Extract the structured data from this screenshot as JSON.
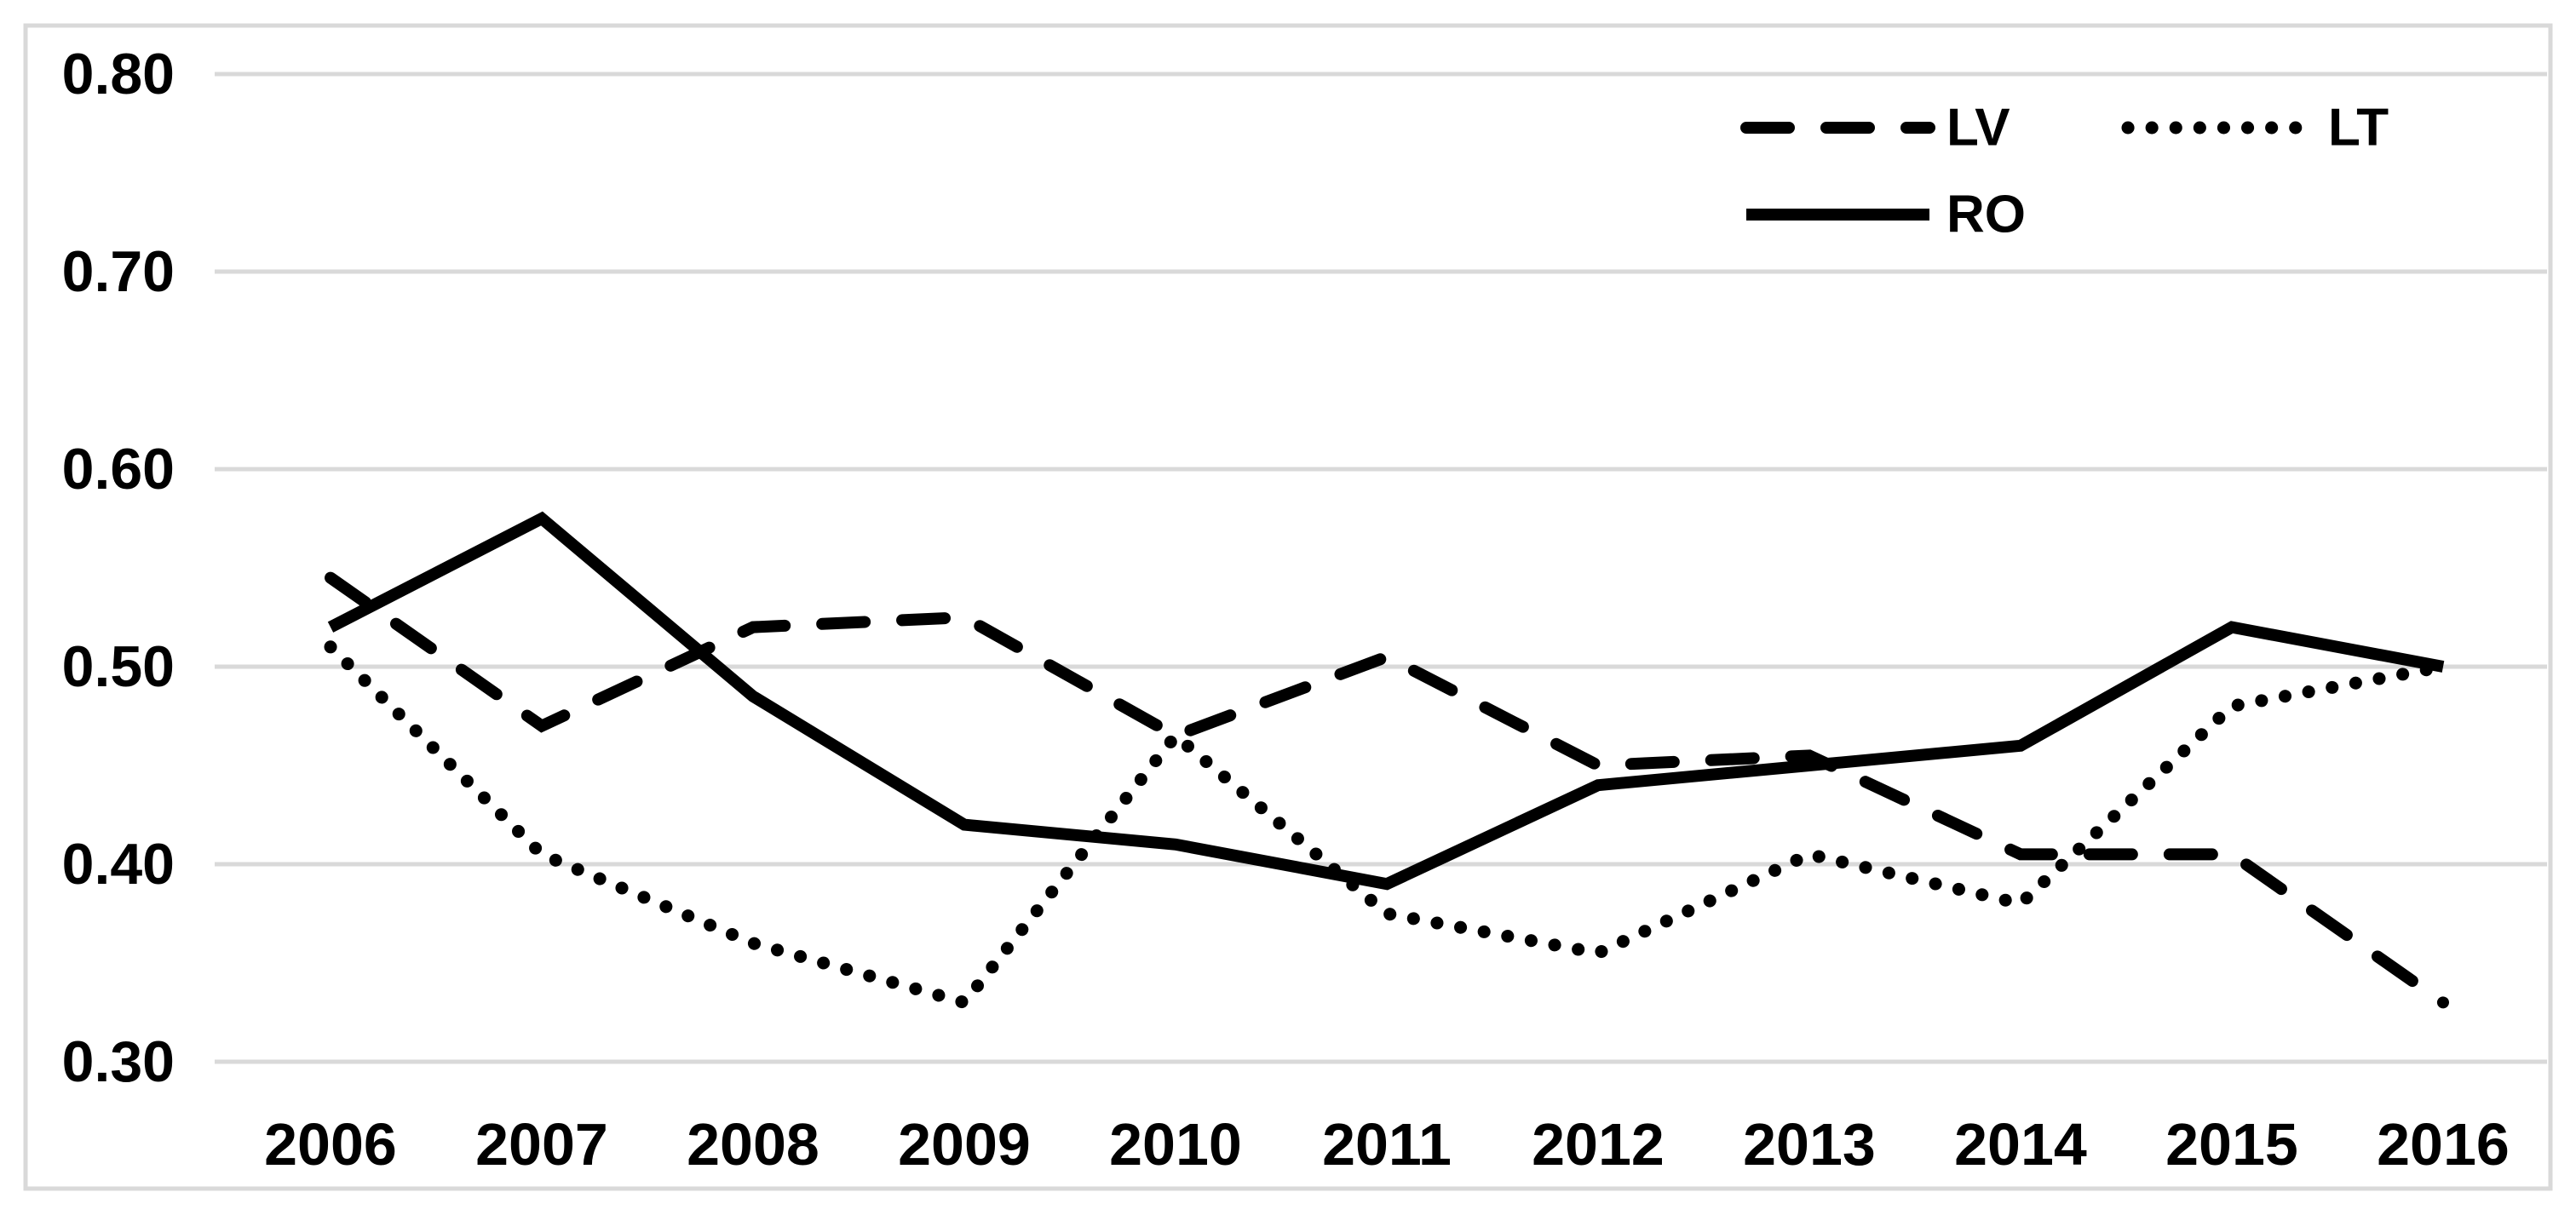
{
  "chart_data": {
    "type": "line",
    "title": "",
    "xlabel": "",
    "ylabel": "",
    "categories": [
      "2006",
      "2007",
      "2008",
      "2009",
      "2010",
      "2011",
      "2012",
      "2013",
      "2014",
      "2015",
      "2016"
    ],
    "series": [
      {
        "name": "LV",
        "style": "dashed",
        "values": [
          0.545,
          0.47,
          0.52,
          0.525,
          0.465,
          0.505,
          0.45,
          0.455,
          0.405,
          0.405,
          0.33
        ]
      },
      {
        "name": "LT",
        "style": "dotted",
        "values": [
          0.51,
          0.405,
          0.36,
          0.33,
          0.465,
          0.375,
          0.355,
          0.405,
          0.38,
          0.48,
          0.5
        ]
      },
      {
        "name": "RO",
        "style": "solid",
        "values": [
          0.52,
          0.575,
          0.485,
          0.42,
          0.41,
          0.39,
          0.44,
          0.45,
          0.46,
          0.52,
          0.5
        ]
      }
    ],
    "ylim": [
      0.3,
      0.8
    ],
    "yticks": [
      "0.80",
      "0.70",
      "0.60",
      "0.50",
      "0.40",
      "0.30"
    ],
    "grid": true,
    "legend_position": "top-right",
    "legend": {
      "items": [
        {
          "label": "LV",
          "style": "dashed"
        },
        {
          "label": "LT",
          "style": "dotted"
        },
        {
          "label": "RO",
          "style": "solid"
        }
      ]
    },
    "colors": {
      "line": "#000000",
      "gridline": "#d9d9d9",
      "frame": "#d9d9d9",
      "background": "#ffffff",
      "text": "#000000"
    }
  }
}
